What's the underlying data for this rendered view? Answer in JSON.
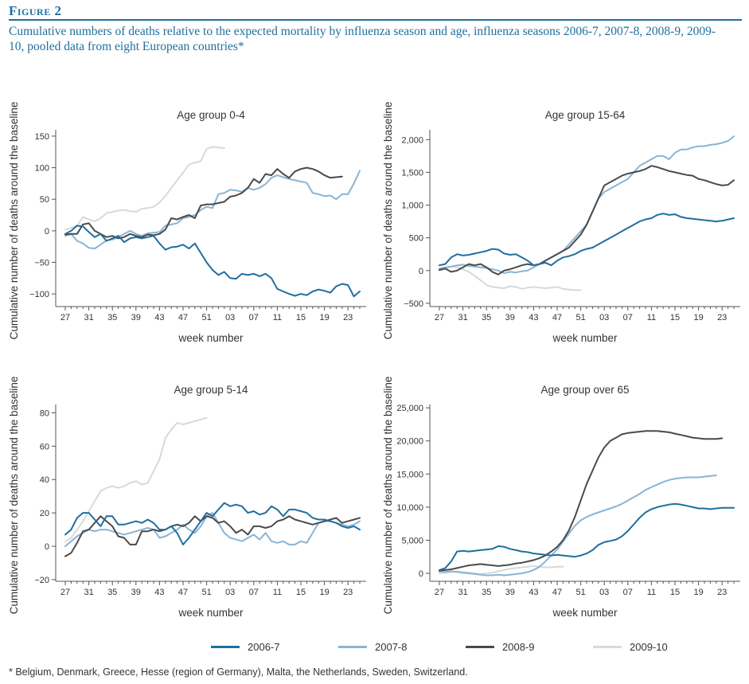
{
  "figure": {
    "label": "Figure 2",
    "title": "Cumulative numbers of deaths relative to the expected mortality by influenza season and age, influenza seasons 2006-7, 2007-8, 2008-9, 2009-10, pooled data from eight European countries*",
    "footnote": "* Belgium, Denmark, Greece, Hesse (region of Germany), Malta, the Netherlands, Sweden, Switzerland."
  },
  "colors": {
    "2006-7": "#1f6f9e",
    "2007-8": "#8ab4d4",
    "2008-9": "#4a4a4a",
    "2009-10": "#d9d9d9",
    "accent": "#1f6f9e"
  },
  "legend": [
    {
      "name": "2006-7",
      "color": "#1f6f9e"
    },
    {
      "name": "2007-8",
      "color": "#8ab4d4"
    },
    {
      "name": "2008-9",
      "color": "#4a4a4a"
    },
    {
      "name": "2009-10",
      "color": "#d9d9d9"
    }
  ],
  "chart_data": [
    {
      "type": "line",
      "title": "Age group 0-4",
      "xlabel": "week number",
      "ylabel": "Cumulative number of deaths around the baseline",
      "week_labels": [
        "27",
        "31",
        "35",
        "39",
        "43",
        "47",
        "51",
        "03",
        "07",
        "11",
        "15",
        "19",
        "23"
      ],
      "ylim": [
        -120,
        160
      ],
      "yticks": [
        -100,
        -50,
        0,
        50,
        100,
        150
      ],
      "ytick_labels": [
        "−100",
        "−50",
        "0",
        "50",
        "100",
        "150"
      ],
      "grid": false,
      "series": [
        {
          "name": "2006-7",
          "values": [
            -5,
            0,
            8,
            7,
            -2,
            -10,
            -5,
            -16,
            -12,
            -8,
            -18,
            -12,
            -10,
            -12,
            -10,
            -8,
            -20,
            -30,
            -26,
            -25,
            -22,
            -28,
            -20,
            -35,
            -50,
            -62,
            -70,
            -65,
            -75,
            -76,
            -68,
            -70,
            -68,
            -72,
            -68,
            -75,
            -92,
            -96,
            -100,
            -103,
            -100,
            -102,
            -96,
            -93,
            -95,
            -98,
            -88,
            -84,
            -86,
            -104,
            -96
          ]
        },
        {
          "name": "2007-8",
          "values": [
            -8,
            -5,
            -16,
            -20,
            -27,
            -28,
            -22,
            -15,
            -14,
            -10,
            -5,
            0,
            -5,
            -8,
            -4,
            -3,
            -2,
            8,
            10,
            12,
            20,
            22,
            25,
            33,
            38,
            36,
            58,
            60,
            65,
            64,
            62,
            68,
            65,
            68,
            74,
            84,
            88,
            85,
            82,
            80,
            78,
            76,
            60,
            58,
            55,
            56,
            50,
            58,
            58,
            75,
            95
          ]
        },
        {
          "name": "2008-9",
          "values": [
            -6,
            -5,
            -5,
            10,
            12,
            0,
            -5,
            -10,
            -8,
            -12,
            -10,
            -5,
            -8,
            -10,
            -6,
            -7,
            -5,
            2,
            20,
            18,
            22,
            25,
            20,
            40,
            42,
            42,
            44,
            46,
            54,
            56,
            60,
            68,
            82,
            76,
            90,
            88,
            98,
            90,
            84,
            94,
            98,
            100,
            98,
            94,
            88,
            84,
            85,
            86
          ]
        },
        {
          "name": "2009-10",
          "values": [
            2,
            5,
            8,
            22,
            18,
            15,
            20,
            28,
            30,
            32,
            33,
            31,
            30,
            35,
            36,
            38,
            45,
            55,
            68,
            80,
            92,
            105,
            108,
            110,
            130,
            133,
            132,
            131
          ]
        }
      ]
    },
    {
      "type": "line",
      "title": "Age group 15-64",
      "xlabel": "week number",
      "ylabel": "Cumulative number of deaths around the baseline",
      "week_labels": [
        "27",
        "31",
        "35",
        "39",
        "43",
        "47",
        "51",
        "03",
        "07",
        "11",
        "15",
        "19",
        "23"
      ],
      "ylim": [
        -550,
        2150
      ],
      "yticks": [
        -500,
        0,
        500,
        1000,
        1500,
        2000
      ],
      "ytick_labels": [
        "−500",
        "0",
        "500",
        "1,000",
        "1,500",
        "2,000"
      ],
      "grid": false,
      "series": [
        {
          "name": "2006-7",
          "values": [
            80,
            100,
            200,
            250,
            230,
            240,
            260,
            280,
            300,
            330,
            320,
            260,
            240,
            250,
            200,
            150,
            80,
            100,
            120,
            80,
            150,
            200,
            220,
            250,
            300,
            330,
            350,
            400,
            450,
            500,
            550,
            600,
            650,
            700,
            750,
            780,
            800,
            850,
            870,
            850,
            860,
            820,
            800,
            790,
            780,
            770,
            760,
            750,
            760,
            780,
            800
          ]
        },
        {
          "name": "2007-8",
          "values": [
            30,
            50,
            60,
            80,
            90,
            70,
            60,
            50,
            40,
            20,
            0,
            -40,
            -20,
            -30,
            -10,
            0,
            50,
            100,
            150,
            200,
            250,
            300,
            400,
            500,
            600,
            700,
            900,
            1100,
            1200,
            1250,
            1300,
            1350,
            1400,
            1500,
            1600,
            1650,
            1700,
            1750,
            1750,
            1700,
            1800,
            1850,
            1850,
            1880,
            1900,
            1900,
            1920,
            1930,
            1950,
            1980,
            2050
          ]
        },
        {
          "name": "2008-9",
          "values": [
            10,
            30,
            -20,
            0,
            50,
            100,
            80,
            100,
            50,
            -20,
            -60,
            0,
            20,
            50,
            80,
            100,
            80,
            100,
            150,
            200,
            250,
            300,
            350,
            450,
            550,
            700,
            900,
            1100,
            1300,
            1350,
            1400,
            1450,
            1480,
            1500,
            1520,
            1550,
            1600,
            1580,
            1550,
            1520,
            1500,
            1480,
            1460,
            1450,
            1400,
            1380,
            1350,
            1320,
            1300,
            1310,
            1380
          ]
        },
        {
          "name": "2009-10",
          "values": [
            0,
            30,
            60,
            50,
            20,
            -20,
            -80,
            -150,
            -220,
            -250,
            -260,
            -270,
            -240,
            -250,
            -280,
            -260,
            -250,
            -260,
            -270,
            -260,
            -250,
            -280,
            -290,
            -300,
            -300
          ]
        }
      ]
    },
    {
      "type": "line",
      "title": "Age group 5-14",
      "xlabel": "week number",
      "ylabel": "Cumulative number of deaths around the baseline",
      "week_labels": [
        "27",
        "31",
        "35",
        "39",
        "43",
        "47",
        "51",
        "03",
        "07",
        "11",
        "15",
        "19",
        "23"
      ],
      "ylim": [
        -21,
        85
      ],
      "yticks": [
        -20,
        0,
        20,
        40,
        60,
        80
      ],
      "ytick_labels": [
        "−20",
        "0",
        "20",
        "40",
        "60",
        "80"
      ],
      "grid": false,
      "series": [
        {
          "name": "2006-7",
          "values": [
            7,
            10,
            17,
            20,
            20,
            16,
            12,
            18,
            18,
            13,
            13,
            14,
            15,
            14,
            16,
            14,
            10,
            10,
            12,
            8,
            1,
            5,
            10,
            15,
            20,
            18,
            22,
            26,
            24,
            25,
            24,
            20,
            21,
            19,
            20,
            24,
            22,
            18,
            22,
            22,
            21,
            20,
            17,
            16,
            16,
            15,
            14,
            12,
            11,
            12,
            10
          ]
        },
        {
          "name": "2007-8",
          "values": [
            0,
            3,
            6,
            8,
            10,
            9,
            10,
            10,
            9,
            8,
            7,
            8,
            9,
            10,
            11,
            10,
            5,
            6,
            8,
            10,
            13,
            10,
            8,
            12,
            18,
            20,
            14,
            8,
            5,
            4,
            3,
            5,
            7,
            4,
            8,
            3,
            2,
            3,
            1,
            1,
            3,
            2,
            8,
            14,
            15,
            15,
            14,
            13,
            12,
            13,
            15
          ]
        },
        {
          "name": "2008-9",
          "values": [
            -6,
            -4,
            2,
            9,
            10,
            14,
            18,
            15,
            12,
            6,
            5,
            1,
            1,
            9,
            9,
            10,
            9,
            10,
            12,
            13,
            12,
            14,
            18,
            15,
            18,
            17,
            14,
            15,
            12,
            8,
            10,
            7,
            12,
            12,
            11,
            12,
            15,
            16,
            18,
            16,
            15,
            14,
            13,
            14,
            15,
            16,
            17,
            14,
            15,
            16,
            17
          ]
        },
        {
          "name": "2009-10",
          "values": [
            3,
            5,
            10,
            15,
            21,
            27,
            33,
            35,
            36,
            35,
            36,
            38,
            39,
            37,
            38,
            45,
            52,
            65,
            70,
            74,
            73,
            74,
            75,
            76,
            77
          ]
        }
      ]
    },
    {
      "type": "line",
      "title": "Age group over 65",
      "xlabel": "week number",
      "ylabel": "Cumulative number of deaths around the baseline",
      "week_labels": [
        "27",
        "31",
        "35",
        "39",
        "43",
        "47",
        "51",
        "03",
        "07",
        "11",
        "15",
        "19",
        "23"
      ],
      "ylim": [
        -1200,
        25500
      ],
      "yticks": [
        0,
        5000,
        10000,
        15000,
        20000,
        25000
      ],
      "ytick_labels": [
        "0",
        "5,000",
        "10,000",
        "15,000",
        "20,000",
        "25,000"
      ],
      "grid": false,
      "series": [
        {
          "name": "2006-7",
          "values": [
            500,
            800,
            1800,
            3300,
            3400,
            3300,
            3400,
            3500,
            3600,
            3700,
            4100,
            4000,
            3700,
            3500,
            3300,
            3200,
            3000,
            2900,
            2800,
            2700,
            2800,
            2700,
            2600,
            2500,
            2700,
            3000,
            3500,
            4300,
            4700,
            4900,
            5100,
            5600,
            6400,
            7400,
            8400,
            9200,
            9700,
            10000,
            10200,
            10400,
            10500,
            10400,
            10200,
            10000,
            9800,
            9800,
            9700,
            9800,
            9900,
            9900,
            9900
          ]
        },
        {
          "name": "2007-8",
          "values": [
            300,
            200,
            300,
            200,
            100,
            0,
            -100,
            -200,
            -300,
            -300,
            -200,
            -300,
            -200,
            -100,
            0,
            200,
            500,
            1000,
            1800,
            2700,
            3600,
            4800,
            6000,
            7200,
            8000,
            8500,
            8900,
            9200,
            9500,
            9800,
            10100,
            10500,
            11000,
            11500,
            12000,
            12600,
            13000,
            13400,
            13800,
            14100,
            14300,
            14400,
            14500,
            14500,
            14500,
            14600,
            14700,
            14800
          ]
        },
        {
          "name": "2008-9",
          "values": [
            400,
            500,
            600,
            800,
            1000,
            1200,
            1300,
            1400,
            1300,
            1200,
            1100,
            1200,
            1300,
            1500,
            1600,
            1800,
            2000,
            2300,
            2700,
            3300,
            4000,
            5000,
            6500,
            8500,
            11000,
            13500,
            15500,
            17500,
            19000,
            20000,
            20500,
            21000,
            21200,
            21300,
            21400,
            21500,
            21500,
            21500,
            21400,
            21300,
            21100,
            20900,
            20700,
            20500,
            20400,
            20300,
            20300,
            20300,
            20400
          ]
        },
        {
          "name": "2009-10",
          "values": [
            0,
            100,
            200,
            300,
            200,
            100,
            0,
            -100,
            0,
            100,
            300,
            500,
            700,
            800,
            900,
            1000,
            1100,
            1000,
            900,
            900,
            1000,
            1000
          ]
        }
      ]
    }
  ]
}
